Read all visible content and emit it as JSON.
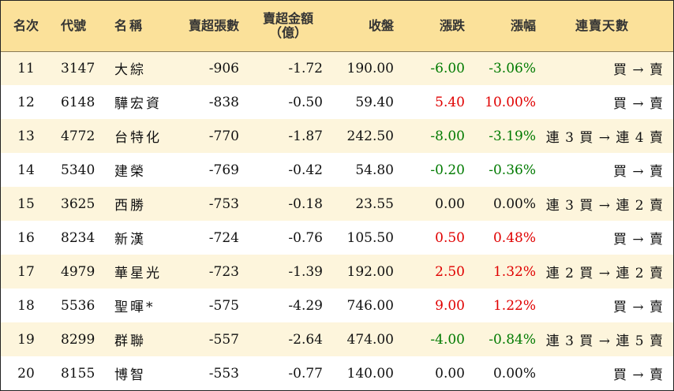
{
  "colors": {
    "header_bg": "#fbe19a",
    "odd_row_bg": "#fdf5dc",
    "up": "#e00000",
    "down": "#007a00",
    "flat": "#111111"
  },
  "headers": {
    "rank": "名次",
    "code": "代號",
    "name": "名稱",
    "net_sell_lots": "賣超張數",
    "net_sell_amount_line1": "賣超金額",
    "net_sell_amount_line2": "（億）",
    "close": "收盤",
    "change": "漲跌",
    "change_pct": "漲幅",
    "streak": "連賣天數"
  },
  "rows": [
    {
      "rank": "11",
      "code": "3147",
      "name": "大綜",
      "lots": "-906",
      "amount": "-1.72",
      "close": "190.00",
      "change": "-6.00",
      "pct": "-3.06%",
      "dir": "down",
      "streak": "買 → 賣"
    },
    {
      "rank": "12",
      "code": "6148",
      "name": "驊宏資",
      "lots": "-838",
      "amount": "-0.50",
      "close": "59.40",
      "change": "5.40",
      "pct": "10.00%",
      "dir": "up",
      "streak": "買 → 賣"
    },
    {
      "rank": "13",
      "code": "4772",
      "name": "台特化",
      "lots": "-770",
      "amount": "-1.87",
      "close": "242.50",
      "change": "-8.00",
      "pct": "-3.19%",
      "dir": "down",
      "streak": "連 3 買 → 連 4 賣"
    },
    {
      "rank": "14",
      "code": "5340",
      "name": "建榮",
      "lots": "-769",
      "amount": "-0.42",
      "close": "54.80",
      "change": "-0.20",
      "pct": "-0.36%",
      "dir": "down",
      "streak": "買 → 賣"
    },
    {
      "rank": "15",
      "code": "3625",
      "name": "西勝",
      "lots": "-753",
      "amount": "-0.18",
      "close": "23.55",
      "change": "0.00",
      "pct": "0.00%",
      "dir": "flat",
      "streak": "連 3 買 → 連 2 賣"
    },
    {
      "rank": "16",
      "code": "8234",
      "name": "新漢",
      "lots": "-724",
      "amount": "-0.76",
      "close": "105.50",
      "change": "0.50",
      "pct": "0.48%",
      "dir": "up",
      "streak": "買 → 賣"
    },
    {
      "rank": "17",
      "code": "4979",
      "name": "華星光",
      "lots": "-723",
      "amount": "-1.39",
      "close": "192.00",
      "change": "2.50",
      "pct": "1.32%",
      "dir": "up",
      "streak": "連 2 買 → 連 2 賣"
    },
    {
      "rank": "18",
      "code": "5536",
      "name": "聖暉*",
      "lots": "-575",
      "amount": "-4.29",
      "close": "746.00",
      "change": "9.00",
      "pct": "1.22%",
      "dir": "up",
      "streak": "買 → 賣"
    },
    {
      "rank": "19",
      "code": "8299",
      "name": "群聯",
      "lots": "-557",
      "amount": "-2.64",
      "close": "474.00",
      "change": "-4.00",
      "pct": "-0.84%",
      "dir": "down",
      "streak": "連 3 買 → 連 5 賣"
    },
    {
      "rank": "20",
      "code": "8155",
      "name": "博智",
      "lots": "-553",
      "amount": "-0.77",
      "close": "140.00",
      "change": "0.00",
      "pct": "0.00%",
      "dir": "flat",
      "streak": "買 → 賣"
    }
  ]
}
